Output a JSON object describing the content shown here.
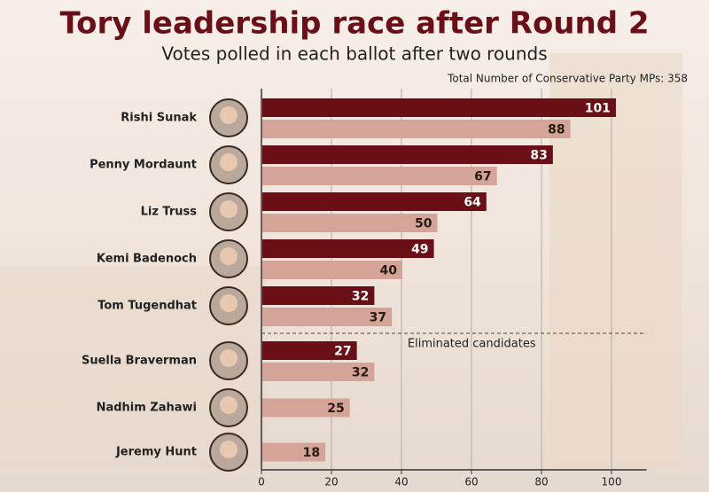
{
  "chart_data": {
    "type": "bar",
    "orientation": "horizontal",
    "title": "Tory leadership race after Round 2",
    "subtitle": "Votes polled in each ballot after two rounds",
    "note": "Total Number of Conservative Party MPs: 358",
    "annotation": "Eliminated candidates",
    "categories": [
      "Rishi Sunak",
      "Penny Mordaunt",
      "Liz Truss",
      "Kemi Badenoch",
      "Tom Tugendhat",
      "Suella Braverman",
      "Nadhim Zahawi",
      "Jeremy Hunt"
    ],
    "series": [
      {
        "color": "#6b0f17",
        "values": [
          101,
          83,
          64,
          49,
          32,
          27,
          null,
          null
        ]
      },
      {
        "color": "#d3a497",
        "values": [
          88,
          67,
          50,
          40,
          37,
          32,
          25,
          18
        ]
      }
    ],
    "xlim": [
      0,
      110
    ],
    "xticks": [
      0,
      20,
      40,
      60,
      80,
      100
    ],
    "grid": true
  }
}
